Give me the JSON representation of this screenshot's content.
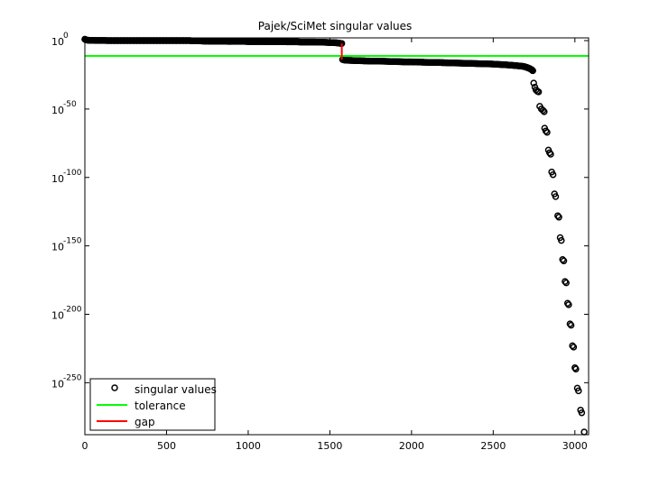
{
  "chart_data": {
    "type": "scatter",
    "title": "Pajek/SciMet singular values",
    "xlabel": "",
    "ylabel": "",
    "xlim": [
      0,
      3084
    ],
    "ylim_log10": [
      -288,
      2
    ],
    "y_scale": "log",
    "x_ticks": [
      0,
      500,
      1000,
      1500,
      2000,
      2500,
      3000
    ],
    "y_ticks": [
      {
        "exp": 0,
        "base": "10",
        "power": "0"
      },
      {
        "exp": -50,
        "base": "10",
        "power": "-50"
      },
      {
        "exp": -100,
        "base": "10",
        "power": "-100"
      },
      {
        "exp": -150,
        "base": "10",
        "power": "-150"
      },
      {
        "exp": -200,
        "base": "10",
        "power": "-200"
      },
      {
        "exp": -250,
        "base": "10",
        "power": "-250"
      }
    ],
    "grid": false,
    "legend_position": "bottom-left",
    "series": [
      {
        "name": "singular values",
        "marker": "circle-open",
        "color": "#000000",
        "points_log10": [
          [
            0,
            1
          ],
          [
            8,
            0.5
          ],
          [
            20,
            0.3
          ],
          [
            40,
            0.2
          ],
          [
            60,
            0.1
          ],
          [
            80,
            0.1
          ],
          [
            100,
            0.1
          ],
          [
            120,
            0.1
          ],
          [
            140,
            0
          ],
          [
            160,
            0
          ],
          [
            180,
            0
          ],
          [
            200,
            0
          ],
          [
            220,
            0
          ],
          [
            240,
            0
          ],
          [
            260,
            0
          ],
          [
            280,
            0
          ],
          [
            300,
            0
          ],
          [
            320,
            0
          ],
          [
            340,
            0
          ],
          [
            360,
            0
          ],
          [
            380,
            0
          ],
          [
            400,
            0
          ],
          [
            420,
            0
          ],
          [
            440,
            0
          ],
          [
            460,
            0
          ],
          [
            480,
            0
          ],
          [
            500,
            0
          ],
          [
            520,
            0
          ],
          [
            540,
            0
          ],
          [
            560,
            0
          ],
          [
            580,
            0
          ],
          [
            600,
            0
          ],
          [
            620,
            0
          ],
          [
            640,
            0
          ],
          [
            660,
            -0.1
          ],
          [
            680,
            -0.1
          ],
          [
            700,
            -0.2
          ],
          [
            720,
            -0.3
          ],
          [
            740,
            -0.4
          ],
          [
            760,
            -0.4
          ],
          [
            780,
            -0.5
          ],
          [
            800,
            -0.5
          ],
          [
            820,
            -0.5
          ],
          [
            840,
            -0.5
          ],
          [
            860,
            -0.5
          ],
          [
            880,
            -0.6
          ],
          [
            900,
            -0.6
          ],
          [
            920,
            -0.6
          ],
          [
            940,
            -0.6
          ],
          [
            960,
            -0.6
          ],
          [
            980,
            -0.6
          ],
          [
            1000,
            -0.7
          ],
          [
            1020,
            -0.7
          ],
          [
            1040,
            -0.7
          ],
          [
            1060,
            -0.7
          ],
          [
            1080,
            -0.7
          ],
          [
            1100,
            -0.7
          ],
          [
            1120,
            -0.8
          ],
          [
            1140,
            -0.8
          ],
          [
            1160,
            -0.8
          ],
          [
            1180,
            -0.8
          ],
          [
            1200,
            -0.8
          ],
          [
            1220,
            -0.8
          ],
          [
            1240,
            -0.9
          ],
          [
            1260,
            -0.9
          ],
          [
            1280,
            -0.9
          ],
          [
            1300,
            -0.9
          ],
          [
            1320,
            -1
          ],
          [
            1340,
            -1
          ],
          [
            1360,
            -1
          ],
          [
            1380,
            -1
          ],
          [
            1400,
            -1
          ],
          [
            1420,
            -1.1
          ],
          [
            1440,
            -1.1
          ],
          [
            1460,
            -1.2
          ],
          [
            1480,
            -1.3
          ],
          [
            1500,
            -1.4
          ],
          [
            1520,
            -1.5
          ],
          [
            1540,
            -1.6
          ],
          [
            1555,
            -1.8
          ],
          [
            1565,
            -2
          ],
          [
            1573,
            -2.1
          ],
          [
            1578,
            -13.8
          ],
          [
            1590,
            -14.2
          ],
          [
            1610,
            -14.4
          ],
          [
            1630,
            -14.5
          ],
          [
            1650,
            -14.6
          ],
          [
            1680,
            -14.7
          ],
          [
            1710,
            -14.8
          ],
          [
            1740,
            -14.9
          ],
          [
            1770,
            -15
          ],
          [
            1800,
            -15
          ],
          [
            1830,
            -15.1
          ],
          [
            1860,
            -15.2
          ],
          [
            1890,
            -15.3
          ],
          [
            1920,
            -15.4
          ],
          [
            1950,
            -15.5
          ],
          [
            1980,
            -15.5
          ],
          [
            2010,
            -15.6
          ],
          [
            2040,
            -15.7
          ],
          [
            2070,
            -15.8
          ],
          [
            2100,
            -15.9
          ],
          [
            2130,
            -16
          ],
          [
            2160,
            -16
          ],
          [
            2190,
            -16.1
          ],
          [
            2220,
            -16.2
          ],
          [
            2250,
            -16.3
          ],
          [
            2280,
            -16.4
          ],
          [
            2310,
            -16.5
          ],
          [
            2340,
            -16.6
          ],
          [
            2370,
            -16.7
          ],
          [
            2400,
            -16.8
          ],
          [
            2430,
            -16.9
          ],
          [
            2460,
            -17
          ],
          [
            2490,
            -17.1
          ],
          [
            2520,
            -17.3
          ],
          [
            2550,
            -17.5
          ],
          [
            2580,
            -17.7
          ],
          [
            2610,
            -18
          ],
          [
            2640,
            -18.3
          ],
          [
            2670,
            -18.6
          ],
          [
            2690,
            -19
          ],
          [
            2705,
            -19.5
          ],
          [
            2715,
            -20
          ],
          [
            2725,
            -20.5
          ],
          [
            2735,
            -21.2
          ],
          [
            2742,
            -22
          ],
          [
            2748,
            -31
          ],
          [
            2755,
            -34
          ],
          [
            2762,
            -36
          ],
          [
            2770,
            -37
          ],
          [
            2778,
            -37.5
          ],
          [
            2785,
            -48
          ],
          [
            2795,
            -50
          ],
          [
            2805,
            -51
          ],
          [
            2812,
            -52
          ],
          [
            2815,
            -64
          ],
          [
            2822,
            -66
          ],
          [
            2830,
            -67
          ],
          [
            2838,
            -80
          ],
          [
            2845,
            -82
          ],
          [
            2852,
            -83
          ],
          [
            2858,
            -96
          ],
          [
            2866,
            -98
          ],
          [
            2875,
            -112
          ],
          [
            2882,
            -114
          ],
          [
            2895,
            -128
          ],
          [
            2902,
            -129
          ],
          [
            2910,
            -144
          ],
          [
            2917,
            -146
          ],
          [
            2925,
            -160
          ],
          [
            2932,
            -161
          ],
          [
            2940,
            -176
          ],
          [
            2947,
            -177
          ],
          [
            2955,
            -192
          ],
          [
            2962,
            -193
          ],
          [
            2970,
            -207
          ],
          [
            2977,
            -208
          ],
          [
            2985,
            -223
          ],
          [
            2992,
            -224
          ],
          [
            3000,
            -239
          ],
          [
            3006,
            -240
          ],
          [
            3015,
            -254
          ],
          [
            3022,
            -256
          ],
          [
            3035,
            -270
          ],
          [
            3042,
            -272
          ],
          [
            3057,
            -286
          ]
        ]
      },
      {
        "name": "tolerance",
        "color": "#00ff00",
        "line_log10": -11.2
      },
      {
        "name": "gap",
        "color": "#ff0000",
        "segment": {
          "x": 1573,
          "from_log10": -2.1,
          "to_log10": -13.8
        }
      }
    ]
  }
}
